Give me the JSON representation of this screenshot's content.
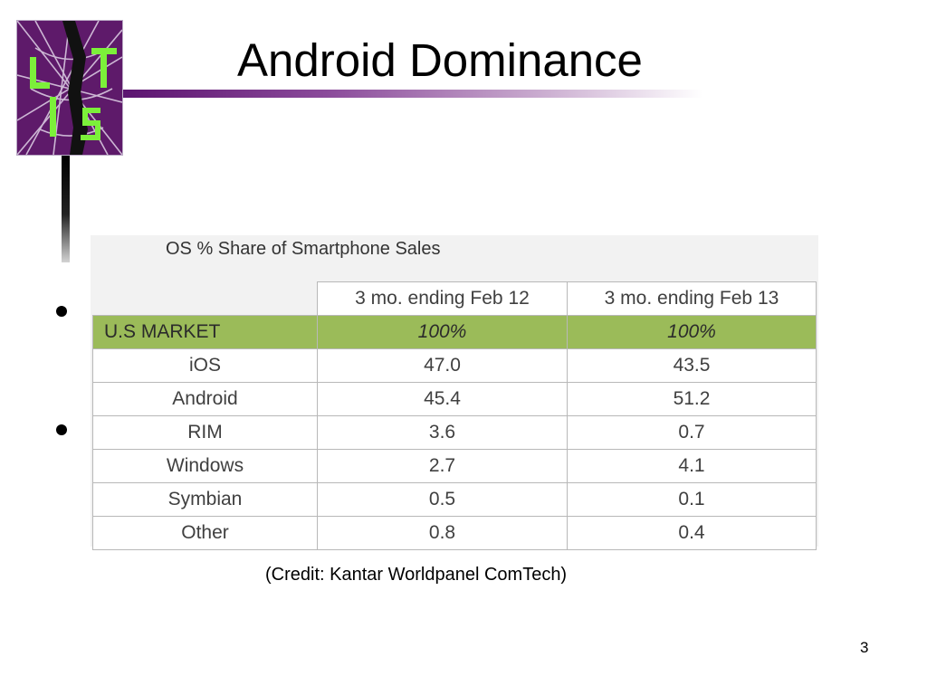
{
  "slide": {
    "title": "Android Dominance",
    "page_number": "3",
    "credit": "(Credit: Kantar Worldpanel ComTech)",
    "logo_text": "CIST"
  },
  "table": {
    "title": "OS % Share of Smartphone Sales",
    "columns": [
      "",
      "3 mo. ending Feb 12",
      "3 mo. ending Feb 13"
    ],
    "market_row": {
      "label": "U.S MARKET",
      "values": [
        "100%",
        "100%"
      ]
    },
    "rows": [
      {
        "label": "iOS",
        "values": [
          "47.0",
          "43.5"
        ]
      },
      {
        "label": "Android",
        "values": [
          "45.4",
          "51.2"
        ]
      },
      {
        "label": "RIM",
        "values": [
          "3.6",
          "0.7"
        ]
      },
      {
        "label": "Windows",
        "values": [
          "2.7",
          "4.1"
        ]
      },
      {
        "label": "Symbian",
        "values": [
          "0.5",
          "0.1"
        ]
      },
      {
        "label": "Other",
        "values": [
          "0.8",
          "0.4"
        ]
      }
    ]
  },
  "colors": {
    "logo_bg": "#5e1a6a",
    "logo_letters": "#7cf03a",
    "rule_start": "#5c1470",
    "market_row_bg": "#9bbb59"
  }
}
